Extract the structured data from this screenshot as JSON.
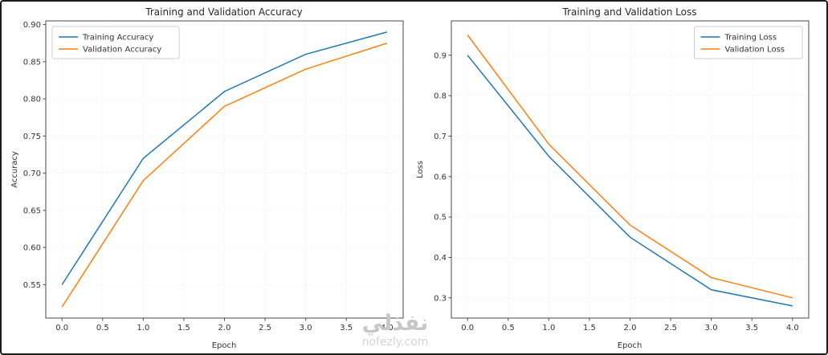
{
  "watermark": {
    "arabic": "نفذلي",
    "site": "nofezly.com"
  },
  "chart_data": [
    {
      "type": "line",
      "title": "Training and Validation Accuracy",
      "xlabel": "Epoch",
      "ylabel": "Accuracy",
      "x": [
        0,
        1,
        2,
        3,
        4
      ],
      "series": [
        {
          "name": "Training Accuracy",
          "color": "#1f77b4",
          "values": [
            0.55,
            0.72,
            0.81,
            0.86,
            0.89
          ]
        },
        {
          "name": "Validation Accuracy",
          "color": "#ff7f0e",
          "values": [
            0.52,
            0.69,
            0.79,
            0.84,
            0.875
          ]
        }
      ],
      "xlim": [
        -0.2,
        4.2
      ],
      "ylim": [
        0.505,
        0.905
      ],
      "xticks": [
        0.0,
        0.5,
        1.0,
        1.5,
        2.0,
        2.5,
        3.0,
        3.5,
        4.0
      ],
      "xtick_labels": [
        "0.0",
        "0.5",
        "1.0",
        "1.5",
        "2.0",
        "2.5",
        "3.0",
        "3.5",
        "4.0"
      ],
      "yticks": [
        0.55,
        0.6,
        0.65,
        0.7,
        0.75,
        0.8,
        0.85,
        0.9
      ],
      "ytick_labels": [
        "0.55",
        "0.60",
        "0.65",
        "0.70",
        "0.75",
        "0.80",
        "0.85",
        "0.90"
      ],
      "legend_position": "top-left",
      "grid": true
    },
    {
      "type": "line",
      "title": "Training and Validation Loss",
      "xlabel": "Epoch",
      "ylabel": "Loss",
      "x": [
        0,
        1,
        2,
        3,
        4
      ],
      "series": [
        {
          "name": "Training Loss",
          "color": "#1f77b4",
          "values": [
            0.9,
            0.65,
            0.45,
            0.32,
            0.28
          ]
        },
        {
          "name": "Validation Loss",
          "color": "#ff7f0e",
          "values": [
            0.95,
            0.68,
            0.48,
            0.35,
            0.3
          ]
        }
      ],
      "xlim": [
        -0.2,
        4.2
      ],
      "ylim": [
        0.25,
        0.985
      ],
      "xticks": [
        0.0,
        0.5,
        1.0,
        1.5,
        2.0,
        2.5,
        3.0,
        3.5,
        4.0
      ],
      "xtick_labels": [
        "0.0",
        "0.5",
        "1.0",
        "1.5",
        "2.0",
        "2.5",
        "3.0",
        "3.5",
        "4.0"
      ],
      "yticks": [
        0.3,
        0.4,
        0.5,
        0.6,
        0.7,
        0.8,
        0.9
      ],
      "ytick_labels": [
        "0.3",
        "0.4",
        "0.5",
        "0.6",
        "0.7",
        "0.8",
        "0.9"
      ],
      "legend_position": "top-right",
      "grid": true
    }
  ]
}
